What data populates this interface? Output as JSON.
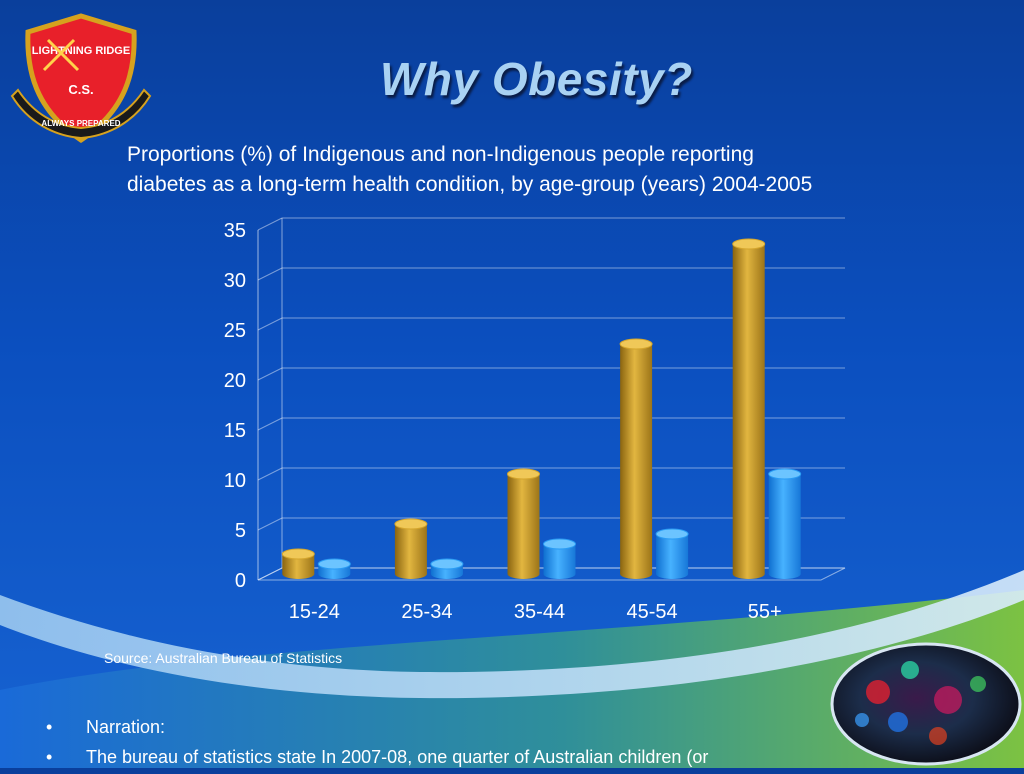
{
  "slide": {
    "title": "Why Obesity?",
    "subtitle_line1": "Proportions (%) of Indigenous and non-Indigenous people reporting",
    "subtitle_line2": "diabetes as a long-term health condition, by age-group (years) 2004-2005",
    "source": "Source: Australian Bureau of Statistics",
    "bullets": [
      "Narration:",
      "The bureau of statistics state In 2007-08, one quarter of Australian children (or"
    ]
  },
  "logo": {
    "text_top": "LIGHTNING RIDGE",
    "text_cs": "C.S.",
    "motto": "ALWAYS PREPARED",
    "shield_color": "#e8202a",
    "border_color": "#d6a21e"
  },
  "chart_data": {
    "type": "bar",
    "categories": [
      "15-24",
      "25-34",
      "35-44",
      "45-54",
      "55+"
    ],
    "series": [
      {
        "values": [
          2,
          5,
          10,
          23,
          33
        ],
        "color": "#d4a52c"
      },
      {
        "values": [
          1,
          1,
          3,
          4,
          10
        ],
        "color": "#2a9cf4"
      }
    ],
    "yticks": [
      "0",
      "5",
      "10",
      "15",
      "20",
      "25",
      "30",
      "35"
    ],
    "ylim": [
      0,
      35
    ],
    "grid": true,
    "legend": "none"
  }
}
